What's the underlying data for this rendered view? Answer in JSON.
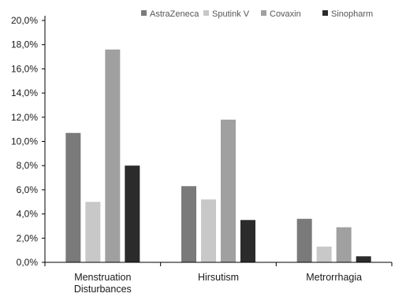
{
  "chart_data": {
    "type": "bar",
    "title": "",
    "xlabel": "",
    "ylabel": "",
    "categories": [
      "Menstruation Disturbances",
      "Hirsutism",
      "Metrorrhagia"
    ],
    "category_lines": [
      [
        "Menstruation",
        "Disturbances"
      ],
      [
        "Hirsutism"
      ],
      [
        "Metrorrhagia"
      ]
    ],
    "ylim": [
      0,
      20
    ],
    "y_ticks": [
      0,
      2,
      4,
      6,
      8,
      10,
      12,
      14,
      16,
      18,
      20
    ],
    "y_tick_labels": [
      "0,0%",
      "2,0%",
      "4,0%",
      "6,0%",
      "8,0%",
      "10,0%",
      "12,0%",
      "14,0%",
      "16,0%",
      "18,0%",
      "20,0%"
    ],
    "grid": false,
    "legend_position": "top-right",
    "series": [
      {
        "name": "AstraZeneca",
        "color": "#7a7a7a",
        "values": [
          10.7,
          6.3,
          3.6
        ]
      },
      {
        "name": "Sputink V",
        "color": "#c8c8c8",
        "values": [
          5.0,
          5.2,
          1.3
        ]
      },
      {
        "name": "Covaxin",
        "color": "#a0a0a0",
        "values": [
          17.6,
          11.8,
          2.9
        ]
      },
      {
        "name": "Sinopharm",
        "color": "#2b2b2b",
        "values": [
          8.0,
          3.5,
          0.5
        ]
      }
    ]
  }
}
